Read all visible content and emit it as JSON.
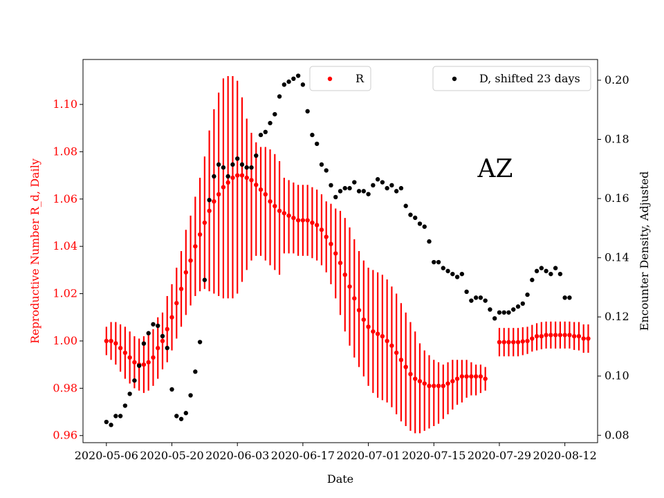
{
  "chart_data": {
    "type": "scatter",
    "title": "",
    "annotation": "AZ",
    "xlabel": "Date",
    "ylabel_left": "Reproductive Number R_d, Daily",
    "ylabel_right": "Encounter Density, Adjusted",
    "x_ticks": [
      "2020-05-06",
      "2020-05-20",
      "2020-06-03",
      "2020-06-17",
      "2020-07-01",
      "2020-07-15",
      "2020-07-29",
      "2020-08-12"
    ],
    "x_range": [
      "2020-05-01",
      "2020-08-19"
    ],
    "ylim_left": [
      0.957,
      1.119
    ],
    "ylim_right": [
      0.0775,
      0.207
    ],
    "y_ticks_left": [
      "0.96",
      "0.98",
      "1.00",
      "1.02",
      "1.04",
      "1.06",
      "1.08",
      "1.10"
    ],
    "y_ticks_right": [
      "0.08",
      "0.10",
      "0.12",
      "0.14",
      "0.16",
      "0.18",
      "0.20"
    ],
    "grid": false,
    "colors": {
      "R": "#ff0000",
      "D": "#000000",
      "left_axis": "#ff0000",
      "right_axis": "#000000"
    },
    "legends": [
      {
        "label": "R",
        "color": "#ff0000",
        "placement": "upper-center"
      },
      {
        "label": "D, shifted 23 days",
        "color": "#000000",
        "placement": "upper-right"
      }
    ],
    "series": [
      {
        "name": "R",
        "axis": "left",
        "color": "#ff0000",
        "start_date": "2020-05-06",
        "values": [
          1.0,
          1.0,
          0.999,
          0.997,
          0.995,
          0.993,
          0.991,
          0.99,
          0.99,
          0.991,
          0.993,
          0.997,
          1.0,
          1.005,
          1.01,
          1.016,
          1.022,
          1.029,
          1.034,
          1.04,
          1.045,
          1.05,
          1.055,
          1.059,
          1.062,
          1.065,
          1.067,
          1.069,
          1.07,
          1.07,
          1.069,
          1.068,
          1.066,
          1.064,
          1.062,
          1.059,
          1.057,
          1.055,
          1.054,
          1.053,
          1.052,
          1.051,
          1.051,
          1.051,
          1.05,
          1.049,
          1.047,
          1.044,
          1.041,
          1.037,
          1.033,
          1.028,
          1.023,
          1.018,
          1.013,
          1.009,
          1.006,
          1.004,
          1.003,
          1.002,
          1.0,
          0.998,
          0.995,
          0.992,
          0.989,
          0.986,
          0.984,
          0.983,
          0.982,
          0.981,
          0.981,
          0.981,
          0.981,
          0.982,
          0.983,
          0.984,
          0.985,
          0.985,
          0.985,
          0.985,
          0.985,
          0.984
        ],
        "lower": [
          0.994,
          0.992,
          0.99,
          0.987,
          0.984,
          0.982,
          0.98,
          0.979,
          0.978,
          0.979,
          0.981,
          0.984,
          0.988,
          0.991,
          0.996,
          1.001,
          1.006,
          1.011,
          1.015,
          1.019,
          1.021,
          1.022,
          1.021,
          1.02,
          1.019,
          1.018,
          1.018,
          1.018,
          1.02,
          1.025,
          1.03,
          1.034,
          1.036,
          1.036,
          1.034,
          1.032,
          1.03,
          1.028,
          1.037,
          1.037,
          1.037,
          1.036,
          1.036,
          1.036,
          1.035,
          1.034,
          1.032,
          1.029,
          1.024,
          1.018,
          1.011,
          1.004,
          0.998,
          0.993,
          0.989,
          0.985,
          0.981,
          0.978,
          0.976,
          0.975,
          0.974,
          0.972,
          0.969,
          0.966,
          0.964,
          0.962,
          0.961,
          0.961,
          0.962,
          0.963,
          0.964,
          0.965,
          0.967,
          0.969,
          0.971,
          0.973,
          0.974,
          0.976,
          0.977,
          0.977,
          0.978,
          0.979
        ],
        "upper": [
          1.006,
          1.008,
          1.008,
          1.007,
          1.006,
          1.004,
          1.002,
          1.001,
          1.002,
          1.003,
          1.005,
          1.01,
          1.012,
          1.019,
          1.024,
          1.031,
          1.038,
          1.047,
          1.053,
          1.061,
          1.069,
          1.078,
          1.089,
          1.098,
          1.105,
          1.111,
          1.112,
          1.112,
          1.11,
          1.103,
          1.094,
          1.088,
          1.084,
          1.082,
          1.082,
          1.081,
          1.079,
          1.076,
          1.069,
          1.068,
          1.067,
          1.066,
          1.066,
          1.066,
          1.065,
          1.064,
          1.062,
          1.059,
          1.058,
          1.056,
          1.055,
          1.052,
          1.048,
          1.043,
          1.038,
          1.034,
          1.031,
          1.03,
          1.029,
          1.028,
          1.026,
          1.023,
          1.02,
          1.016,
          1.012,
          1.008,
          1.004,
          0.999,
          0.996,
          0.994,
          0.992,
          0.991,
          0.99,
          0.991,
          0.992,
          0.992,
          0.992,
          0.992,
          0.991,
          0.99,
          0.99,
          0.989
        ]
      },
      {
        "name": "R",
        "axis": "left",
        "color": "#ff0000",
        "start_date": "2020-07-29",
        "values": [
          0.9995,
          0.9995,
          0.9995,
          0.9995,
          0.9995,
          0.9998,
          1.0,
          1.001,
          1.002,
          1.002,
          1.0025,
          1.0025,
          1.0025,
          1.0025,
          1.0025,
          1.0025,
          1.002,
          1.002,
          1.001,
          1.001
        ],
        "lower": [
          0.9935,
          0.9935,
          0.9935,
          0.9935,
          0.9935,
          0.994,
          0.9945,
          0.9955,
          0.996,
          0.9965,
          0.9968,
          0.9968,
          0.9968,
          0.9968,
          0.9968,
          0.9968,
          0.9962,
          0.996,
          0.995,
          0.995
        ],
        "upper": [
          1.0055,
          1.0055,
          1.0055,
          1.0055,
          1.0055,
          1.0058,
          1.006,
          1.0068,
          1.0075,
          1.008,
          1.0082,
          1.0082,
          1.0082,
          1.0082,
          1.0082,
          1.0082,
          1.008,
          1.008,
          1.007,
          1.007
        ]
      },
      {
        "name": "D, shifted 23 days",
        "axis": "right",
        "color": "#000000",
        "start_date": "2020-05-06",
        "values": [
          0.0845,
          0.0835,
          0.0865,
          0.0865,
          0.09,
          0.094,
          0.0985,
          0.1035,
          0.111,
          0.1145,
          0.1175,
          0.117,
          0.1135,
          0.1095,
          0.0955,
          0.0865,
          0.0855,
          0.0875,
          0.0935,
          0.1015,
          0.1115,
          0.1325,
          0.1595,
          0.1675,
          0.1715,
          0.1705,
          0.1675,
          0.1715,
          0.1735,
          0.1715,
          0.1705,
          0.1705,
          0.1745,
          0.1815,
          0.1825,
          0.1855,
          0.1885,
          0.1945,
          0.1985,
          0.1995,
          0.2005,
          0.2015,
          0.1985,
          0.1895,
          0.1815,
          0.1785,
          0.1715,
          0.1695,
          0.1645,
          0.1605,
          0.1625,
          0.1635,
          0.1635,
          0.1655,
          0.1625,
          0.1625,
          0.1615,
          0.1645,
          0.1665,
          0.1655,
          0.1635,
          0.1645,
          0.1625,
          0.1635,
          0.1575,
          0.1545,
          0.1535,
          0.1515,
          0.1505,
          0.1455,
          0.1385,
          0.1385,
          0.1365,
          0.1355,
          0.1345,
          0.1335,
          0.1345,
          0.1285,
          0.1255,
          0.1265,
          0.1265,
          0.1255,
          0.1225,
          0.1195,
          0.1215,
          0.1215,
          0.1215,
          0.1225,
          0.1235,
          0.1245,
          0.1275,
          0.1325,
          0.1355,
          0.1365,
          0.1355,
          0.1345,
          0.1365,
          0.1345,
          0.1265,
          0.1265
        ]
      }
    ]
  }
}
